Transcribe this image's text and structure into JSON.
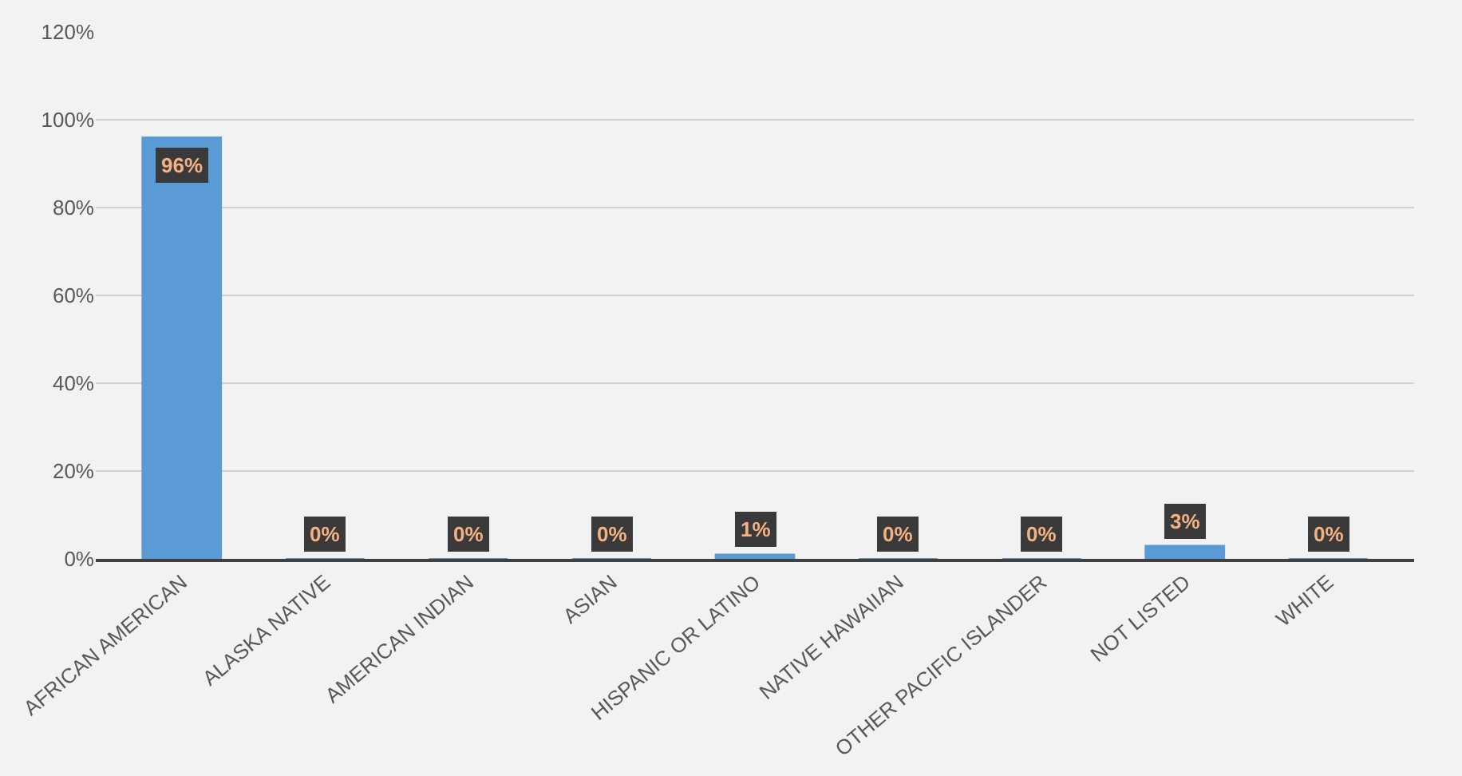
{
  "chart_data": {
    "type": "bar",
    "categories": [
      "AFRICAN AMERICAN",
      "ALASKA NATIVE",
      "AMERICAN INDIAN",
      "ASIAN",
      "HISPANIC OR LATINO",
      "NATIVE HAWAIIAN",
      "OTHER PACIFIC ISLANDER",
      "NOT LISTED",
      "WHITE"
    ],
    "values": [
      96,
      0,
      0,
      0,
      1,
      0,
      0,
      3,
      0
    ],
    "color": "#5b9bd5",
    "value_labels": [
      "96%",
      "0%",
      "0%",
      "0%",
      "1%",
      "0%",
      "0%",
      "3%",
      "0%"
    ],
    "ylim": [
      0,
      120
    ],
    "yticks": [
      {
        "value": 0,
        "label": "0%"
      },
      {
        "value": 20,
        "label": "20%"
      },
      {
        "value": 40,
        "label": "40%"
      },
      {
        "value": 60,
        "label": "60%"
      },
      {
        "value": 80,
        "label": "80%"
      },
      {
        "value": 100,
        "label": "100%"
      },
      {
        "value": 120,
        "label": "120%"
      }
    ],
    "grid": "y",
    "legend": false
  }
}
